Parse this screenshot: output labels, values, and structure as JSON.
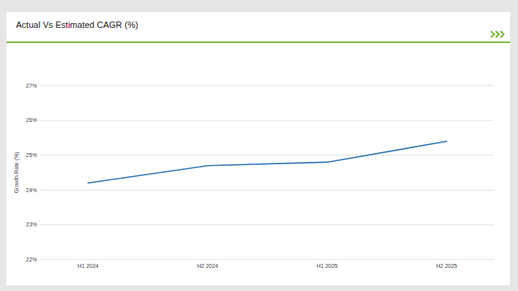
{
  "chart_data": {
    "type": "line",
    "title": "Actual Vs Estimated CAGR (%)",
    "ylabel": "Growth Rate (%)",
    "categories": [
      "H1 2024",
      "H2 2024",
      "H1 2025",
      "H2 2025"
    ],
    "values": [
      24.2,
      24.7,
      24.8,
      25.4
    ],
    "color": "#2e75b6",
    "ylim": [
      22,
      27
    ],
    "yticks": [
      {
        "value": 22,
        "label": "22%"
      },
      {
        "value": 23,
        "label": "23%"
      },
      {
        "value": 24,
        "label": "24%"
      },
      {
        "value": 25,
        "label": "25%"
      },
      {
        "value": 26,
        "label": "26%"
      },
      {
        "value": 27,
        "label": "27%"
      }
    ],
    "grid": true
  }
}
